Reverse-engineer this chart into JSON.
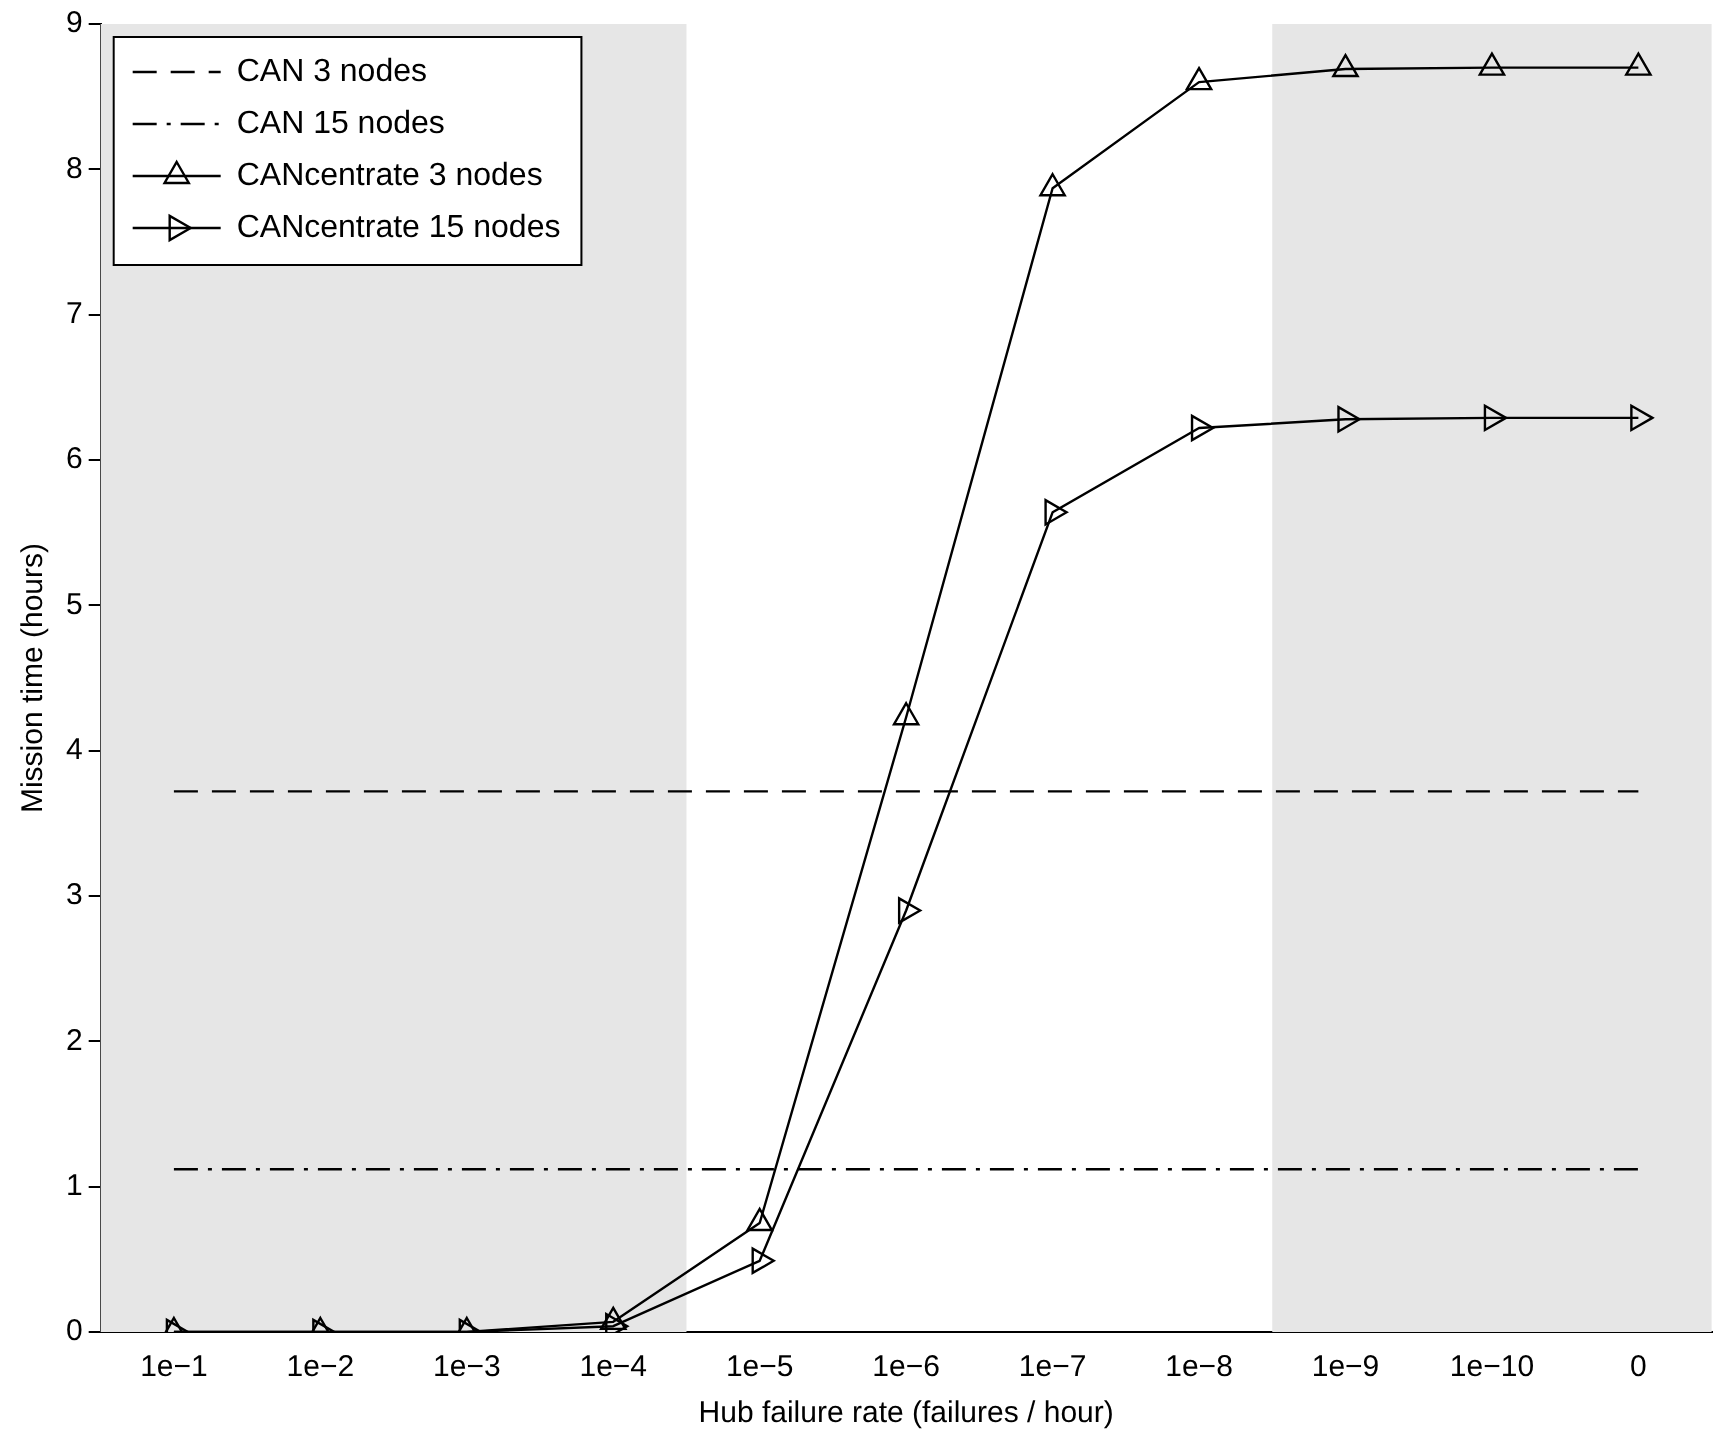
{
  "chart_data": {
    "type": "line",
    "xlabel": "Hub failure rate (failures / hour)",
    "ylabel": "Mission time (hours)",
    "categories": [
      "1e−1",
      "1e−2",
      "1e−3",
      "1e−4",
      "1e−5",
      "1e−6",
      "1e−7",
      "1e−8",
      "1e−9",
      "1e−10",
      "0"
    ],
    "series": [
      {
        "name": "CAN 3 nodes",
        "color": "#000000",
        "line_style": "dashed",
        "marker": "none",
        "values": [
          3.72,
          3.72,
          3.72,
          3.72,
          3.72,
          3.72,
          3.72,
          3.72,
          3.72,
          3.72,
          3.72
        ]
      },
      {
        "name": "CAN 15 nodes",
        "color": "#000000",
        "line_style": "dashdot",
        "marker": "none",
        "values": [
          1.12,
          1.12,
          1.12,
          1.12,
          1.12,
          1.12,
          1.12,
          1.12,
          1.12,
          1.12,
          1.12
        ]
      },
      {
        "name": "CANcentrate 3 nodes",
        "color": "#000000",
        "line_style": "solid",
        "marker": "triangle",
        "values": [
          0,
          0,
          0,
          0.07,
          0.75,
          4.23,
          7.87,
          8.6,
          8.69,
          8.7,
          8.7
        ]
      },
      {
        "name": "CANcentrate 15 nodes",
        "color": "#000000",
        "line_style": "solid",
        "marker": "triangle-right",
        "values": [
          0,
          0,
          0,
          0.04,
          0.49,
          2.9,
          5.64,
          6.22,
          6.28,
          6.29,
          6.29
        ]
      }
    ],
    "bands": [
      {
        "axis": "x",
        "from": "1e−1",
        "to": "1e−4",
        "color": "#e6e6e6"
      },
      {
        "axis": "x",
        "from": "1e−9",
        "to": "0",
        "color": "#e6e6e6"
      }
    ],
    "ylim": [
      0,
      9
    ],
    "yticks": [
      0,
      1,
      2,
      3,
      4,
      5,
      6,
      7,
      8,
      9
    ],
    "grid": false,
    "legend": "top left"
  }
}
